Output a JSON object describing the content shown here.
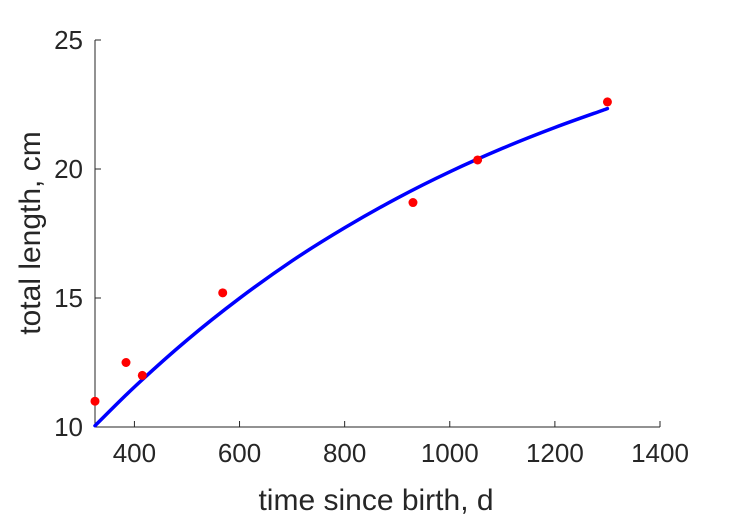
{
  "chart_data": {
    "type": "scatter",
    "xlabel": "time since birth, d",
    "ylabel": "total length, cm",
    "xlim": [
      325,
      1400
    ],
    "ylim": [
      10,
      25
    ],
    "xticks": [
      400,
      600,
      800,
      1000,
      1200,
      1400
    ],
    "yticks": [
      10,
      15,
      20,
      25
    ],
    "grid": false,
    "legend": "none",
    "series": [
      {
        "kind": "scatter",
        "color": "#ff0000",
        "points": [
          {
            "x": 325,
            "y": 11.0
          },
          {
            "x": 384,
            "y": 12.5
          },
          {
            "x": 415,
            "y": 12.0
          },
          {
            "x": 568,
            "y": 15.2
          },
          {
            "x": 930,
            "y": 18.7
          },
          {
            "x": 1053,
            "y": 20.35
          },
          {
            "x": 1300,
            "y": 22.6
          }
        ]
      },
      {
        "kind": "line",
        "color": "#0000ff",
        "points": [
          {
            "x": 325,
            "y": 10.05
          },
          {
            "x": 400,
            "y": 11.55
          },
          {
            "x": 500,
            "y": 13.37
          },
          {
            "x": 600,
            "y": 14.99
          },
          {
            "x": 700,
            "y": 16.44
          },
          {
            "x": 800,
            "y": 17.72
          },
          {
            "x": 900,
            "y": 18.87
          },
          {
            "x": 1000,
            "y": 19.89
          },
          {
            "x": 1100,
            "y": 20.8
          },
          {
            "x": 1200,
            "y": 21.61
          },
          {
            "x": 1300,
            "y": 22.34
          }
        ]
      }
    ]
  }
}
